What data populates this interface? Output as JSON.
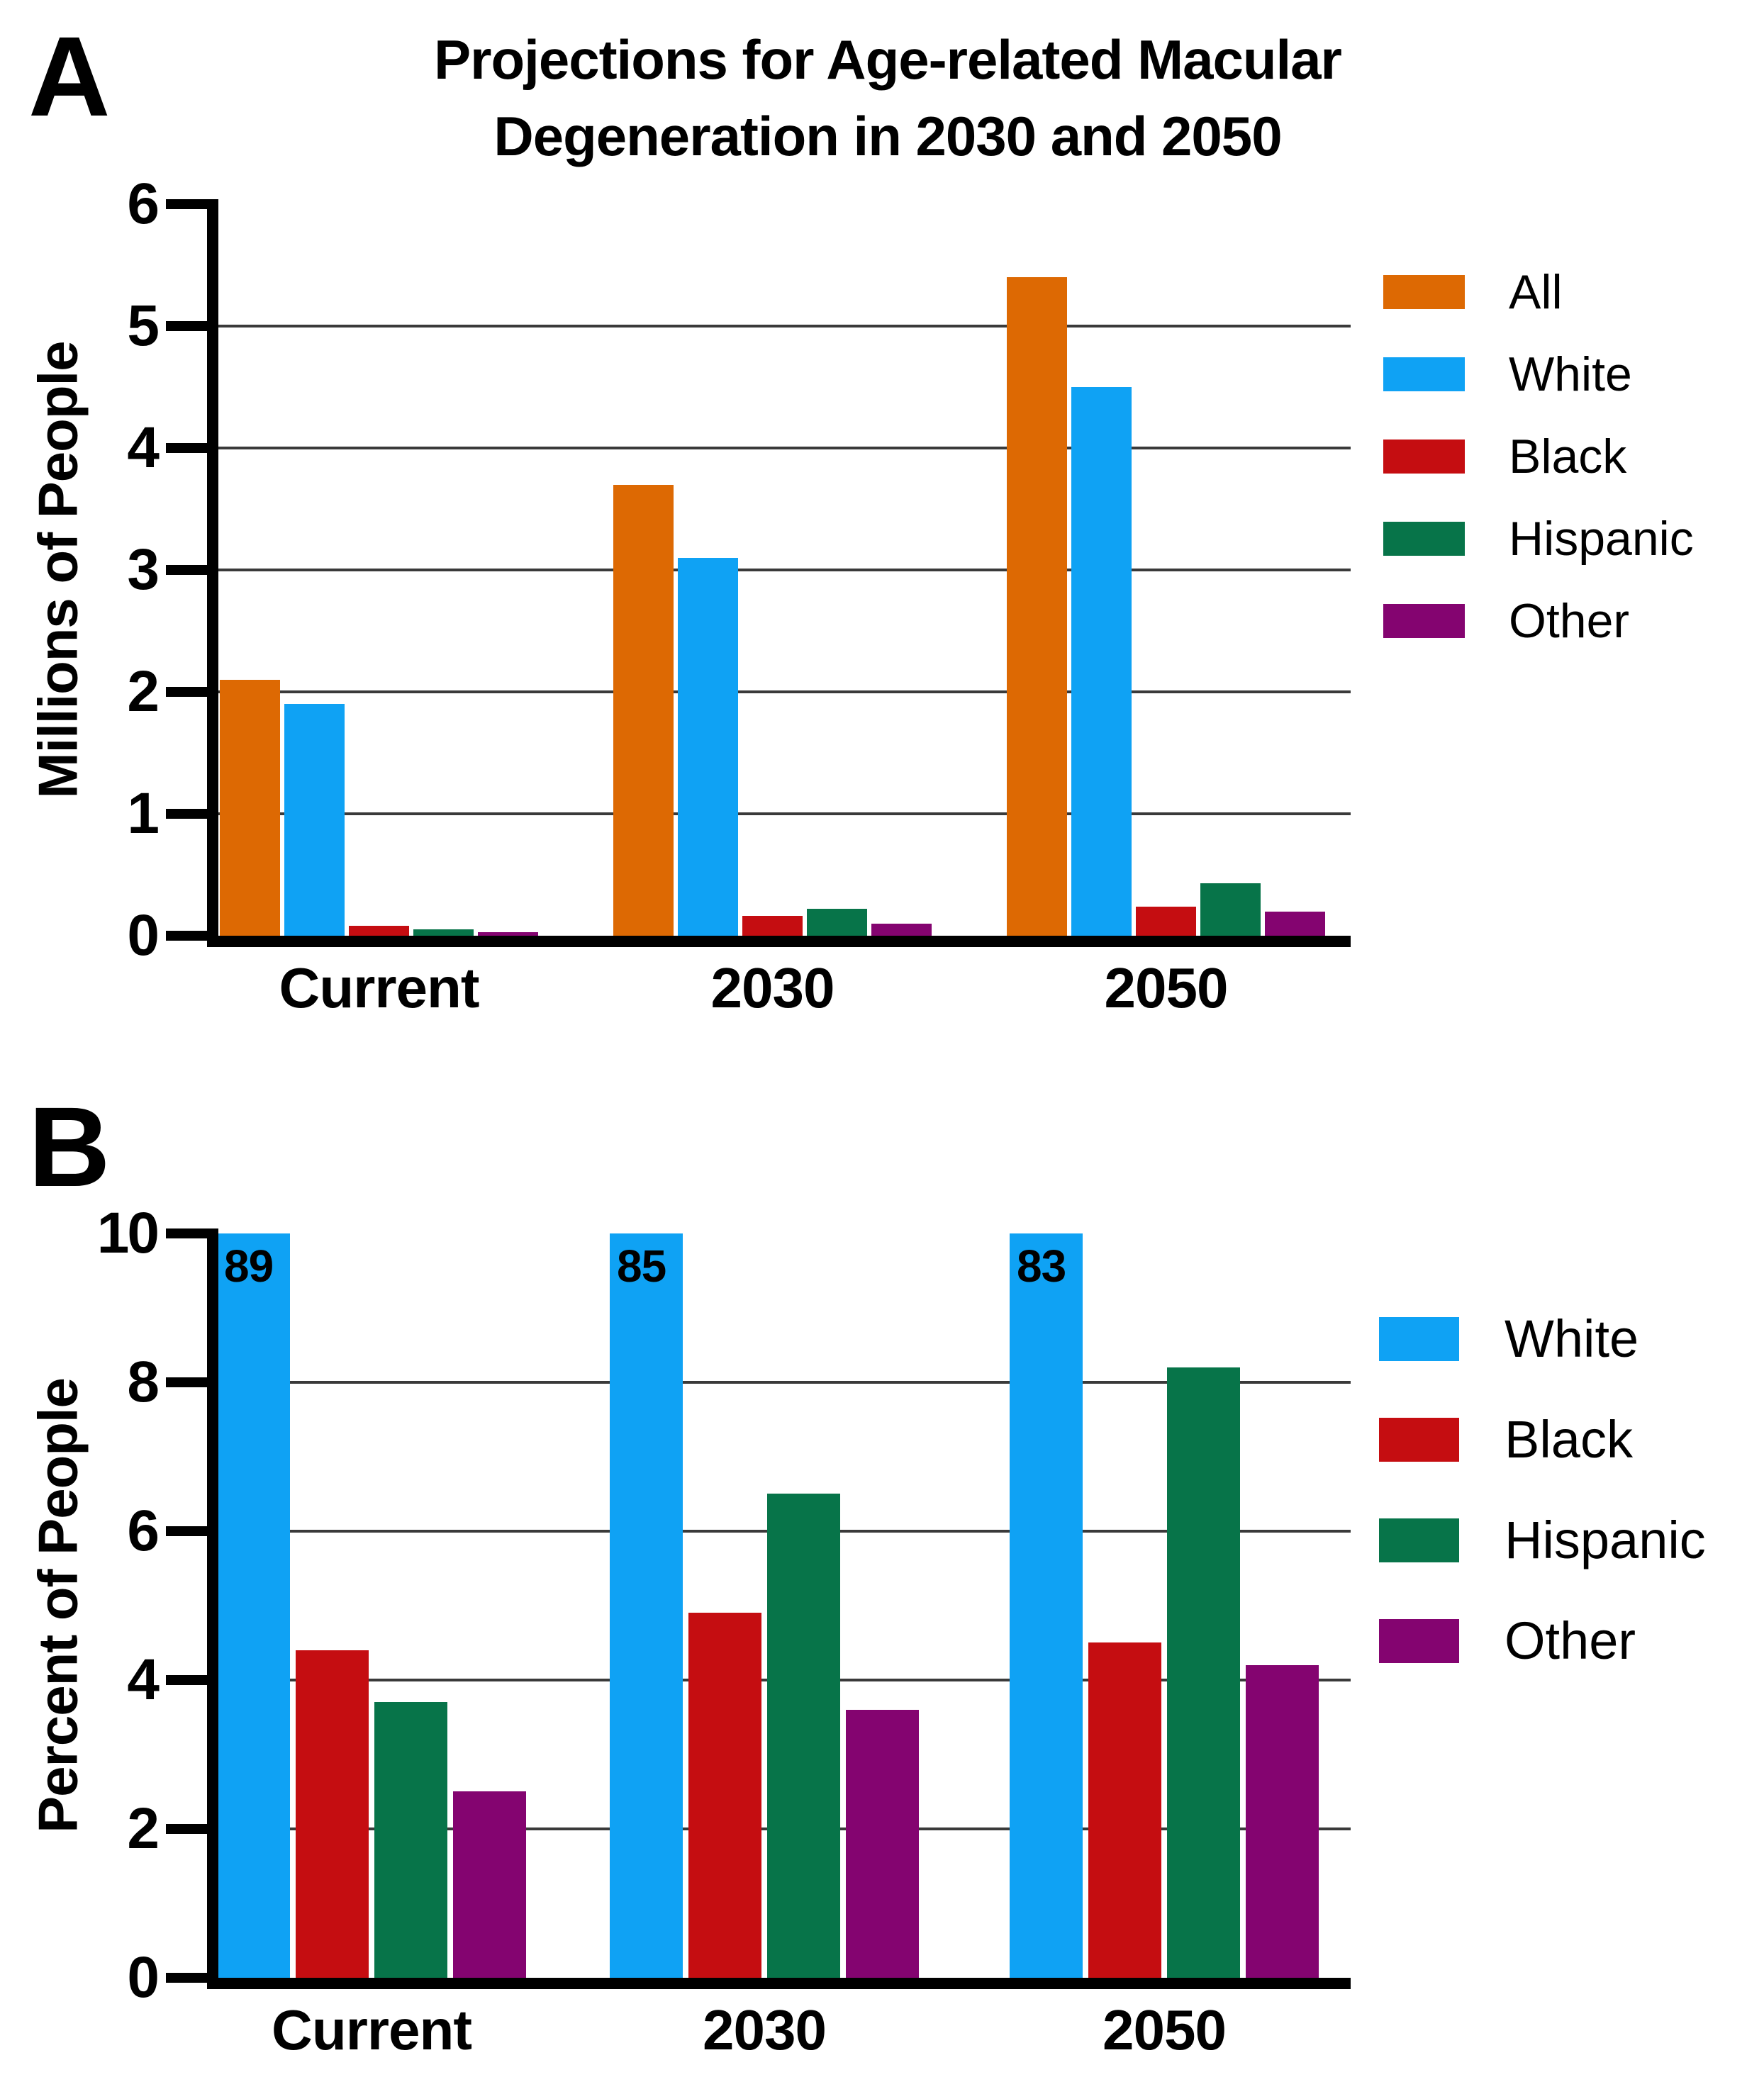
{
  "figure": {
    "panels": [
      {
        "letter": "A",
        "title_lines": [
          "Projections for Age-related Macular",
          "Degeneration in 2030 and 2050"
        ],
        "ylabel": "Millions of People"
      },
      {
        "letter": "B",
        "title_lines": [],
        "ylabel": "Percent of People"
      }
    ]
  },
  "chart_data": [
    {
      "type": "bar",
      "panel": "A",
      "title": "Projections for Age-related Macular Degeneration in 2030 and 2050",
      "xlabel": "",
      "ylabel": "Millions of People",
      "categories": [
        "Current",
        "2030",
        "2050"
      ],
      "series": [
        {
          "name": "All",
          "color": "#DD6903",
          "values": [
            2.1,
            3.7,
            5.4
          ]
        },
        {
          "name": "White",
          "color": "#0FA2F4",
          "values": [
            1.9,
            3.1,
            4.5
          ]
        },
        {
          "name": "Black",
          "color": "#C50D11",
          "values": [
            0.08,
            0.16,
            0.24
          ]
        },
        {
          "name": "Hispanic",
          "color": "#077449",
          "values": [
            0.05,
            0.22,
            0.43
          ]
        },
        {
          "name": "Other",
          "color": "#840470",
          "values": [
            0.03,
            0.1,
            0.2
          ]
        }
      ],
      "ylim": [
        0,
        6
      ],
      "yticks": [
        0,
        1,
        2,
        3,
        4,
        5,
        6
      ],
      "grid": true,
      "legend_position": "right"
    },
    {
      "type": "bar",
      "panel": "B",
      "title": "",
      "xlabel": "",
      "ylabel": "Percent of People",
      "categories": [
        "Current",
        "2030",
        "2050"
      ],
      "series": [
        {
          "name": "White",
          "color": "#0FA2F4",
          "values": [
            89,
            85,
            83
          ],
          "axis_capped_at": 10,
          "bar_labels": [
            "89",
            "85",
            "83"
          ]
        },
        {
          "name": "Black",
          "color": "#C50D11",
          "values": [
            4.4,
            4.9,
            4.5
          ]
        },
        {
          "name": "Hispanic",
          "color": "#077449",
          "values": [
            3.7,
            6.5,
            8.2
          ]
        },
        {
          "name": "Other",
          "color": "#840470",
          "values": [
            2.5,
            3.6,
            4.2
          ]
        }
      ],
      "ylim": [
        0,
        10
      ],
      "yticks": [
        0,
        2,
        4,
        6,
        8,
        10
      ],
      "grid": true,
      "legend_position": "right"
    }
  ]
}
